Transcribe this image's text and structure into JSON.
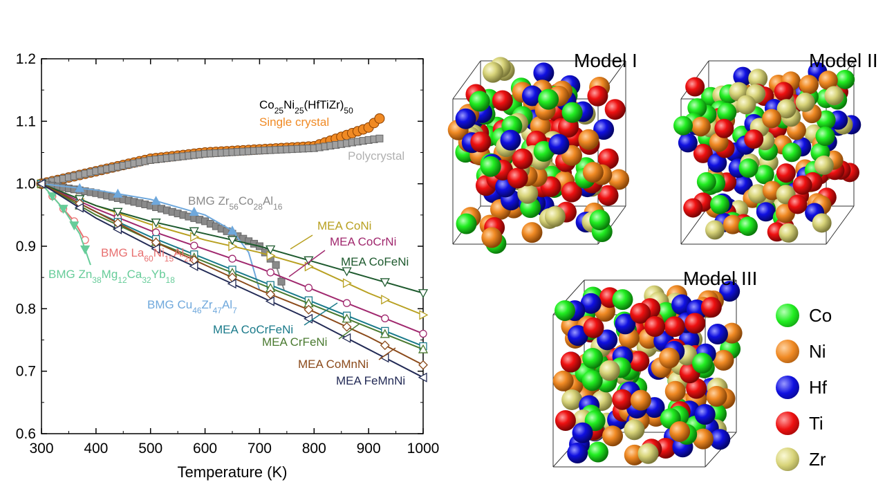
{
  "chart_data": {
    "type": "line",
    "xlabel": "Temperature (K)",
    "ylabel": "",
    "xlim": [
      300,
      1000
    ],
    "ylim": [
      0.6,
      1.2
    ],
    "xticks": [
      "300",
      "400",
      "500",
      "600",
      "700",
      "800",
      "900",
      "1000"
    ],
    "yticks": [
      "0.6",
      "0.7",
      "0.8",
      "0.9",
      "1.0",
      "1.1",
      "1.2"
    ],
    "series": [
      {
        "name": "Single crystal",
        "color": "#F08A24",
        "marker": "circle-filled",
        "x": [
          300,
          400,
          500,
          600,
          700,
          800,
          900,
          925
        ],
        "y": [
          1.0,
          1.02,
          1.04,
          1.05,
          1.055,
          1.06,
          1.09,
          1.108
        ]
      },
      {
        "name": "Polycrystal",
        "color": "#A0A0A0",
        "marker": "square-filled",
        "x": [
          300,
          400,
          500,
          600,
          700,
          800,
          900,
          925
        ],
        "y": [
          1.0,
          1.02,
          1.038,
          1.048,
          1.053,
          1.057,
          1.07,
          1.073
        ]
      },
      {
        "name": "BMG Zr56Co28Al16",
        "color": "#8A8A8A",
        "marker": "square-filled",
        "x": [
          300,
          400,
          500,
          600,
          650,
          700,
          730,
          745
        ],
        "y": [
          1.0,
          0.985,
          0.965,
          0.94,
          0.92,
          0.9,
          0.87,
          0.83
        ]
      },
      {
        "name": "BMG La60Ni15Al25",
        "color": "#E87070",
        "marker": "circle-open",
        "x": [
          300,
          330,
          360,
          380
        ],
        "y": [
          1.0,
          0.97,
          0.94,
          0.91
        ]
      },
      {
        "name": "BMG Zn38Mg12Ca32Yb18",
        "color": "#66CC99",
        "marker": "triangle-down",
        "x": [
          300,
          340,
          370,
          390
        ],
        "y": [
          1.0,
          0.96,
          0.92,
          0.87
        ]
      },
      {
        "name": "BMG Cu46Zr47Al7",
        "color": "#6FA8DC",
        "marker": "triangle-up",
        "x": [
          300,
          400,
          500,
          600,
          650,
          680,
          700
        ],
        "y": [
          1.0,
          0.99,
          0.975,
          0.95,
          0.925,
          0.89,
          0.83
        ]
      },
      {
        "name": "MEA CoNi",
        "color": "#B8A020",
        "marker": "triangle-right",
        "x": [
          300,
          400,
          500,
          600,
          700,
          800,
          900,
          1000
        ],
        "y": [
          1.0,
          0.965,
          0.935,
          0.91,
          0.89,
          0.865,
          0.825,
          0.79
        ]
      },
      {
        "name": "MEA CoCrNi",
        "color": "#A0286E",
        "marker": "circle-open",
        "x": [
          300,
          400,
          500,
          600,
          700,
          800,
          900,
          1000
        ],
        "y": [
          1.0,
          0.96,
          0.925,
          0.895,
          0.865,
          0.83,
          0.795,
          0.76
        ]
      },
      {
        "name": "MEA CoFeNi",
        "color": "#1E5A2E",
        "marker": "triangle-down",
        "x": [
          300,
          400,
          500,
          600,
          700,
          800,
          900,
          1000
        ],
        "y": [
          1.0,
          0.965,
          0.94,
          0.92,
          0.9,
          0.875,
          0.85,
          0.825
        ]
      },
      {
        "name": "MEA CoCrFeNi",
        "color": "#1A7A8A",
        "marker": "square-open",
        "x": [
          300,
          400,
          500,
          600,
          700,
          800,
          900,
          1000
        ],
        "y": [
          1.0,
          0.955,
          0.915,
          0.88,
          0.845,
          0.81,
          0.775,
          0.74
        ]
      },
      {
        "name": "MEA CrFeNi",
        "color": "#4A7A30",
        "marker": "triangle-up",
        "x": [
          300,
          400,
          500,
          600,
          700,
          800,
          900,
          1000
        ],
        "y": [
          1.0,
          0.95,
          0.91,
          0.875,
          0.84,
          0.805,
          0.77,
          0.735
        ]
      },
      {
        "name": "MEA CoMnNi",
        "color": "#8B4A1A",
        "marker": "diamond",
        "x": [
          300,
          400,
          500,
          600,
          700,
          800,
          900,
          1000
        ],
        "y": [
          1.0,
          0.955,
          0.91,
          0.87,
          0.83,
          0.795,
          0.755,
          0.71
        ]
      },
      {
        "name": "MEA FeMnNi",
        "color": "#222A55",
        "marker": "triangle-left",
        "x": [
          300,
          400,
          500,
          600,
          700,
          800,
          900,
          1000
        ],
        "y": [
          1.0,
          0.945,
          0.9,
          0.86,
          0.82,
          0.78,
          0.735,
          0.69
        ]
      }
    ]
  },
  "annotations": {
    "composition_main": "Co",
    "composition_sub1": "25",
    "composition_ni": "Ni",
    "composition_sub2": "25",
    "composition_rest": "(HfTiZr)",
    "composition_sub3": "50",
    "single_crystal": "Single crystal",
    "polycrystal": "Polycrystal",
    "bmg_zr": {
      "pre": "BMG Zr",
      "s1": "56",
      "e1": "Co",
      "s2": "28",
      "e2": "Al",
      "s3": "16"
    },
    "bmg_la": {
      "pre": "BMG La",
      "s1": "60",
      "e1": "Ni",
      "s2": "15",
      "e2": "Al",
      "s3": "25"
    },
    "bmg_zn": {
      "pre": "BMG Zn",
      "s1": "38",
      "e1": "Mg",
      "s2": "12",
      "e2": "Ca",
      "s3": "32",
      "e3": "Yb",
      "s4": "18"
    },
    "bmg_cu": {
      "pre": "BMG Cu",
      "s1": "46",
      "e1": "Zr",
      "s2": "47",
      "e2": "Al",
      "s3": "7"
    },
    "mea_coni": "MEA CoNi",
    "mea_cocrni": "MEA CoCrNi",
    "mea_cofeni": "MEA CoFeNi",
    "mea_cocrfeni": "MEA CoCrFeNi",
    "mea_crfeni": "MEA CrFeNi",
    "mea_comnni": "MEA CoMnNi",
    "mea_femnni": "MEA FeMnNi"
  },
  "models": {
    "model1": "Model I",
    "model2": "Model II",
    "model3": "Model III"
  },
  "legend": [
    {
      "label": "Co",
      "color": "#22EE22"
    },
    {
      "label": "Ni",
      "color": "#F08A24"
    },
    {
      "label": "Hf",
      "color": "#1010E0"
    },
    {
      "label": "Ti",
      "color": "#EE1111"
    },
    {
      "label": "Zr",
      "color": "#D8D47A"
    }
  ]
}
